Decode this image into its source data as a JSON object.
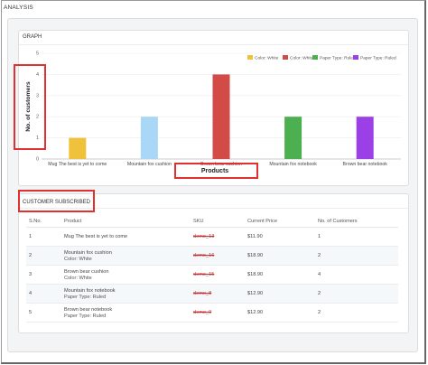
{
  "page_title": "ANALYSIS",
  "graph": {
    "title": "GRAPH"
  },
  "chart_data": {
    "type": "bar",
    "title": "",
    "xlabel": "Products",
    "ylabel": "No. of customers",
    "ylim": [
      0,
      5
    ],
    "yticks": [
      "0",
      "1",
      "2",
      "3",
      "4",
      "5"
    ],
    "categories": [
      "Mug The best is yet to come",
      "Mountain fox cushion",
      "Brown bear cushion",
      "Mountain fox notebook",
      "Brown bear notebook"
    ],
    "values": [
      1,
      2,
      4,
      2,
      2
    ],
    "bar_colors": [
      "#f0c23b",
      "#a8d8f5",
      "#d24b47",
      "#4caf50",
      "#9b3fe6"
    ],
    "legend": [
      {
        "label": "Color: White",
        "color": "#f0c23b"
      },
      {
        "label": "Color: White",
        "color": "#d24b47"
      },
      {
        "label": "Paper Type: Ruled",
        "color": "#4caf50"
      },
      {
        "label": "Paper Type: Ruled",
        "color": "#9b3fe6"
      }
    ],
    "legend_position": "top-right",
    "grid": true
  },
  "customers": {
    "title": "CUSTOMER SUBSCRIBED",
    "columns": [
      "S.No.",
      "Product",
      "SKU",
      "Current Price",
      "No. of Customers"
    ],
    "rows": [
      {
        "sno": "1",
        "product": "Mug The best is yet to come",
        "variant": "",
        "sku": "demo_13",
        "price": "$11.90",
        "customers": "1"
      },
      {
        "sno": "2",
        "product": "Mountain fox cushion",
        "variant": "Color: White",
        "sku": "demo_16",
        "price": "$18.90",
        "customers": "2"
      },
      {
        "sno": "3",
        "product": "Brown bear cushion",
        "variant": "Color: White",
        "sku": "demo_15",
        "price": "$18.90",
        "customers": "4"
      },
      {
        "sno": "4",
        "product": "Mountain fox notebook",
        "variant": "Paper Type: Ruled",
        "sku": "demo_8",
        "price": "$12.90",
        "customers": "2"
      },
      {
        "sno": "5",
        "product": "Brown bear notebook",
        "variant": "Paper Type: Ruled",
        "sku": "demo_9",
        "price": "$12.90",
        "customers": "2"
      }
    ]
  }
}
